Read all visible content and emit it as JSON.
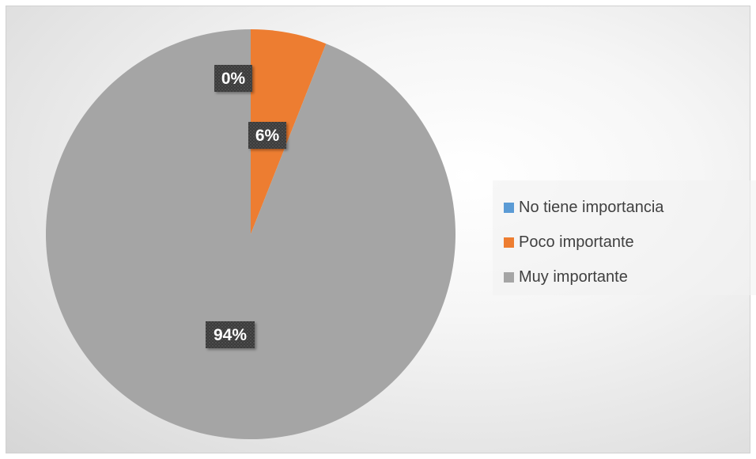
{
  "chart_data": {
    "type": "pie",
    "title": "",
    "categories": [
      "No tiene importancia",
      "Poco importante",
      "Muy importante"
    ],
    "values": [
      0,
      6,
      94
    ],
    "value_labels": [
      "0%",
      "6%",
      "94%"
    ],
    "colors": [
      "#5b9bd5",
      "#ed7d31",
      "#a5a5a5"
    ],
    "start_angle_deg": 0,
    "direction": "clockwise",
    "legend_position": "right",
    "label_style": "dark boxes with white bold percentage text"
  }
}
